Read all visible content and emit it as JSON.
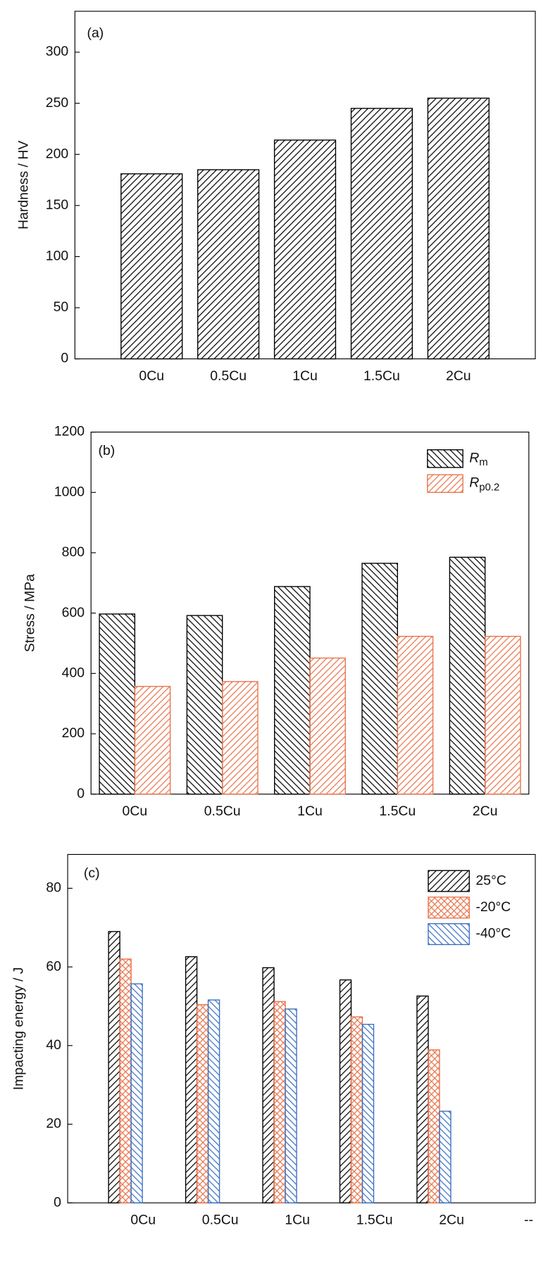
{
  "chart_data": [
    {
      "type": "bar",
      "annotation": "(a)",
      "y_label": "Hardness / HV",
      "categories": [
        "0Cu",
        "0.5Cu",
        "1Cu",
        "1.5Cu",
        "2Cu"
      ],
      "values": [
        181,
        185,
        214,
        245,
        255
      ],
      "color": "#000000",
      "hatch": "/",
      "ylim": [
        0,
        340
      ],
      "yticks": [
        0,
        50,
        100,
        150,
        200,
        250,
        300
      ]
    },
    {
      "type": "grouped_bar",
      "annotation": "(b)",
      "y_label": "Stress / MPa",
      "categories": [
        "0Cu",
        "0.5Cu",
        "1Cu",
        "1.5Cu",
        "2Cu"
      ],
      "series": [
        {
          "name": "Rm",
          "color": "#000000",
          "hatch": "\\",
          "values": [
            597,
            592,
            688,
            765,
            785
          ]
        },
        {
          "name": "Rp0.2",
          "color": "#e8734a",
          "hatch": "/",
          "values": [
            357,
            373,
            451,
            523,
            523
          ]
        }
      ],
      "ylim": [
        0,
        1200
      ],
      "yticks": [
        0,
        200,
        400,
        600,
        800,
        1000,
        1200
      ],
      "legend": "upper right"
    },
    {
      "type": "grouped_bar",
      "annotation": "(c)",
      "y_label": "Impacting energy / J",
      "categories": [
        "0Cu",
        "0.5Cu",
        "1Cu",
        "1.5Cu",
        "2Cu",
        "--"
      ],
      "series": [
        {
          "name": "25°C",
          "color": "#000000",
          "hatch": "/",
          "values": [
            69.0,
            62.6,
            59.8,
            56.7,
            52.6,
            null
          ]
        },
        {
          "name": "-20°C",
          "color": "#e8734a",
          "hatch": "x",
          "values": [
            62.0,
            50.4,
            51.2,
            47.3,
            38.9,
            null
          ]
        },
        {
          "name": "-40°C",
          "color": "#3a6fc4",
          "hatch": "\\",
          "values": [
            55.7,
            51.6,
            49.3,
            45.4,
            23.3,
            null
          ]
        }
      ],
      "ylim": [
        0,
        88.6
      ],
      "yticks": [
        0,
        20,
        40,
        60,
        80
      ],
      "legend": "upper right"
    }
  ]
}
